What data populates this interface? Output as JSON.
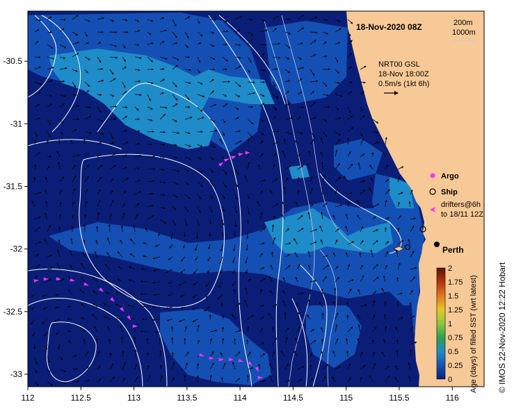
{
  "title": "18-Nov-2020 08Z",
  "isobath_labels": [
    "200m",
    "1000m"
  ],
  "current_legend": {
    "model": "NRT00 GSL",
    "time": "18-Nov 18:00Z",
    "scale": "0.5m/s (1kt 6h)"
  },
  "legend": {
    "argo": "Argo",
    "ship": "Ship",
    "drifters_line1": "drifters@6h",
    "drifters_line2": "to 18/11 12Z"
  },
  "city_label": "Perth",
  "colorbar": {
    "label": "Age (days) of filled SST (wrt latest)",
    "ticks": [
      "2",
      "1.75",
      "1.5",
      "1.25",
      "1",
      "0.75",
      "0.5",
      "0.25",
      "0"
    ],
    "colors": [
      "#5a1400",
      "#b43214",
      "#e0781e",
      "#e6c828",
      "#8cc83c",
      "#2ea050",
      "#1e8cc8",
      "#1450b4",
      "#0a1e78"
    ]
  },
  "credit": "© IMOS 22-Nov-2020 12:22 Hobart",
  "axes": {
    "x_ticks": [
      "112",
      "112.5",
      "113",
      "113.5",
      "114",
      "114.5",
      "115",
      "115.5",
      "116"
    ],
    "y_ticks": [
      "-30.5",
      "-31",
      "-31.5",
      "-32",
      "-32.5",
      "-33"
    ],
    "xlim": [
      112,
      116.3
    ],
    "ylim": [
      -33.1,
      -30.1
    ]
  },
  "colors": {
    "deep_blue": "#0a1e78",
    "mid_blue": "#1450b4",
    "light_blue": "#1e8cc8",
    "land": "#f7c996",
    "drifter": "#ff33ff"
  }
}
